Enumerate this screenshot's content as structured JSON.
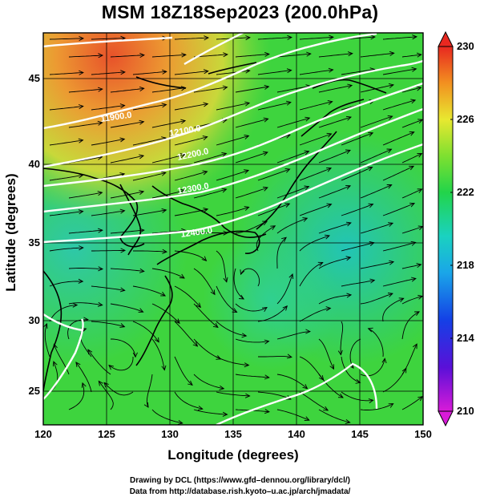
{
  "title": "MSM 18Z18Sep2023 (200.0hPa)",
  "axes": {
    "xlabel": "Longitude (degrees)",
    "ylabel": "Latitude  (degrees)",
    "x_ticks": [
      "120",
      "125",
      "130",
      "135",
      "140",
      "145",
      "150"
    ],
    "y_ticks": [
      "25",
      "30",
      "35",
      "40",
      "45"
    ],
    "lon_range": [
      120,
      150
    ],
    "lat_range": [
      22.4,
      47.6
    ]
  },
  "colorbar": {
    "ticks": [
      "230",
      "226",
      "222",
      "218",
      "214",
      "210"
    ],
    "range": [
      210,
      230
    ]
  },
  "contour_labels": [
    "11900.0",
    "12000.0",
    "12100.0",
    "12200.0",
    "12300.0",
    "12400.0"
  ],
  "credits": {
    "line1": "Drawing by DCL (https://www.gfd–dennou.org/library/dcl/)",
    "line2": "Data from http://database.rish.kyoto–u.ac.jp/arch/jmadata/"
  }
}
